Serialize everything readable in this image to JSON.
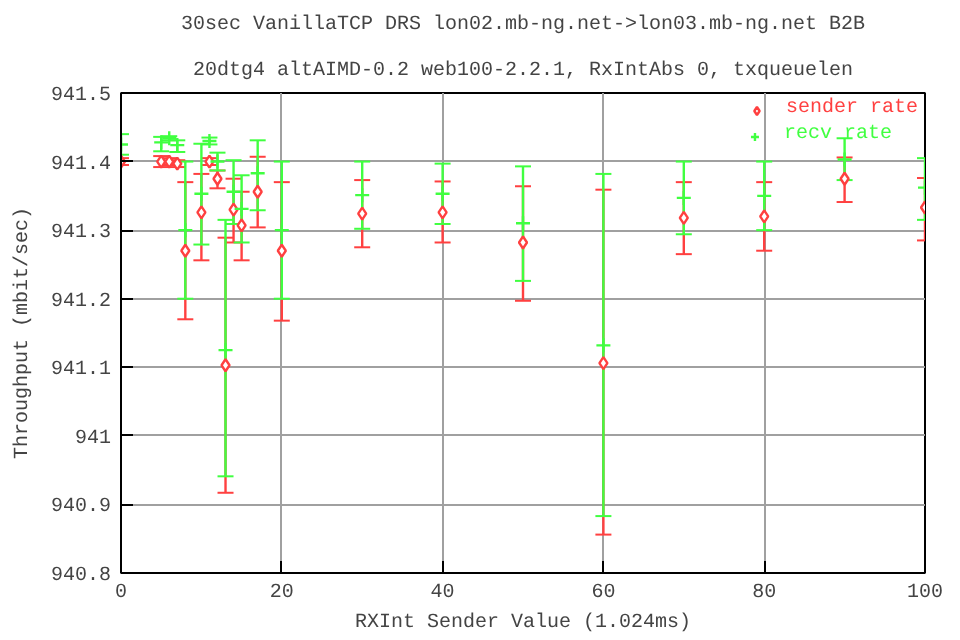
{
  "chart_data": {
    "type": "scatter",
    "title": "30sec VanillaTCP DRS lon02.mb-ng.net->lon03.mb-ng.net B2B",
    "subtitle": "20dtg4 altAIMD-0.2 web100-2.2.1, RxIntAbs 0, txqueuelen",
    "xlabel": "RXInt Sender Value (1.024ms)",
    "ylabel": "Throughput (mbit/sec)",
    "x": [
      0,
      5,
      6,
      7,
      8,
      10,
      11,
      12,
      13,
      14,
      15,
      17,
      20,
      30,
      40,
      50,
      60,
      70,
      80,
      90,
      100
    ],
    "series": [
      {
        "name": "sender rate",
        "color": "#ff4040",
        "marker": "diamond",
        "values": [
          941.4,
          941.4,
          941.4,
          941.397,
          941.27,
          941.326,
          941.4,
          941.375,
          941.103,
          941.33,
          941.307,
          941.356,
          941.27,
          941.324,
          941.326,
          941.282,
          941.106,
          941.318,
          941.32,
          941.375,
          941.333
        ],
        "errors": [
          [
            941.395,
            941.405
          ],
          [
            941.392,
            941.408
          ],
          [
            941.395,
            941.405
          ],
          [
            941.392,
            941.402
          ],
          [
            941.17,
            941.37
          ],
          [
            941.256,
            941.382
          ],
          [
            941.395,
            941.405
          ],
          [
            941.361,
            941.387
          ],
          [
            940.917,
            941.289
          ],
          [
            941.282,
            941.375
          ],
          [
            941.256,
            941.356
          ],
          [
            941.304,
            941.407
          ],
          [
            941.168,
            941.37
          ],
          [
            941.275,
            941.373
          ],
          [
            941.282,
            941.371
          ],
          [
            941.197,
            941.364
          ],
          [
            940.856,
            941.359
          ],
          [
            941.265,
            941.37
          ],
          [
            941.27,
            941.37
          ],
          [
            941.341,
            941.406
          ],
          [
            941.285,
            941.376
          ]
        ]
      },
      {
        "name": "recv rate",
        "color": "#40ff40",
        "marker": "cross",
        "values": [
          941.425,
          941.428,
          941.434,
          941.424,
          941.3,
          941.353,
          941.43,
          941.4,
          941.125,
          941.356,
          941.331,
          941.383,
          941.3,
          941.351,
          941.353,
          941.31,
          941.132,
          941.347,
          941.35,
          941.403,
          941.362
        ],
        "errors": [
          [
            941.41,
            941.44
          ],
          [
            941.415,
            941.436
          ],
          [
            941.431,
            941.437
          ],
          [
            941.414,
            941.431
          ],
          [
            941.2,
            941.4
          ],
          [
            941.279,
            941.426
          ],
          [
            941.425,
            941.435
          ],
          [
            941.387,
            941.413
          ],
          [
            940.941,
            941.315
          ],
          [
            941.309,
            941.402
          ],
          [
            941.282,
            941.38
          ],
          [
            941.329,
            941.431
          ],
          [
            941.2,
            941.4
          ],
          [
            941.302,
            941.4
          ],
          [
            941.309,
            941.397
          ],
          [
            941.226,
            941.393
          ],
          [
            940.883,
            941.382
          ],
          [
            941.294,
            941.4
          ],
          [
            941.3,
            941.4
          ],
          [
            941.373,
            941.434
          ],
          [
            941.315,
            941.405
          ]
        ]
      }
    ],
    "xlim": [
      0,
      100
    ],
    "xticks": [
      0,
      20,
      40,
      60,
      80,
      100
    ],
    "ylim": [
      940.8,
      941.5
    ],
    "yticks": [
      940.8,
      940.9,
      941,
      941.1,
      941.2,
      941.3,
      941.4,
      941.5
    ],
    "grid": true,
    "legend": "top right"
  }
}
